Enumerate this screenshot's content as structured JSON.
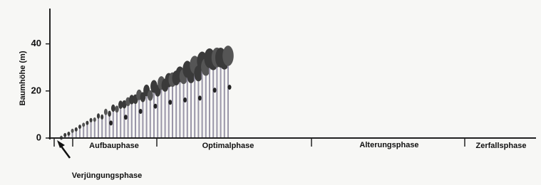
{
  "y_axis": {
    "label": "Baumhöhe (m)",
    "ylim": [
      0,
      55
    ],
    "yticks": [
      0,
      20,
      40
    ]
  },
  "phases": [
    "Aufbauphase",
    "Optimalphase",
    "Alterungsphase",
    "Zerfallsphase"
  ],
  "annotation": "Verjüngungsphase"
}
